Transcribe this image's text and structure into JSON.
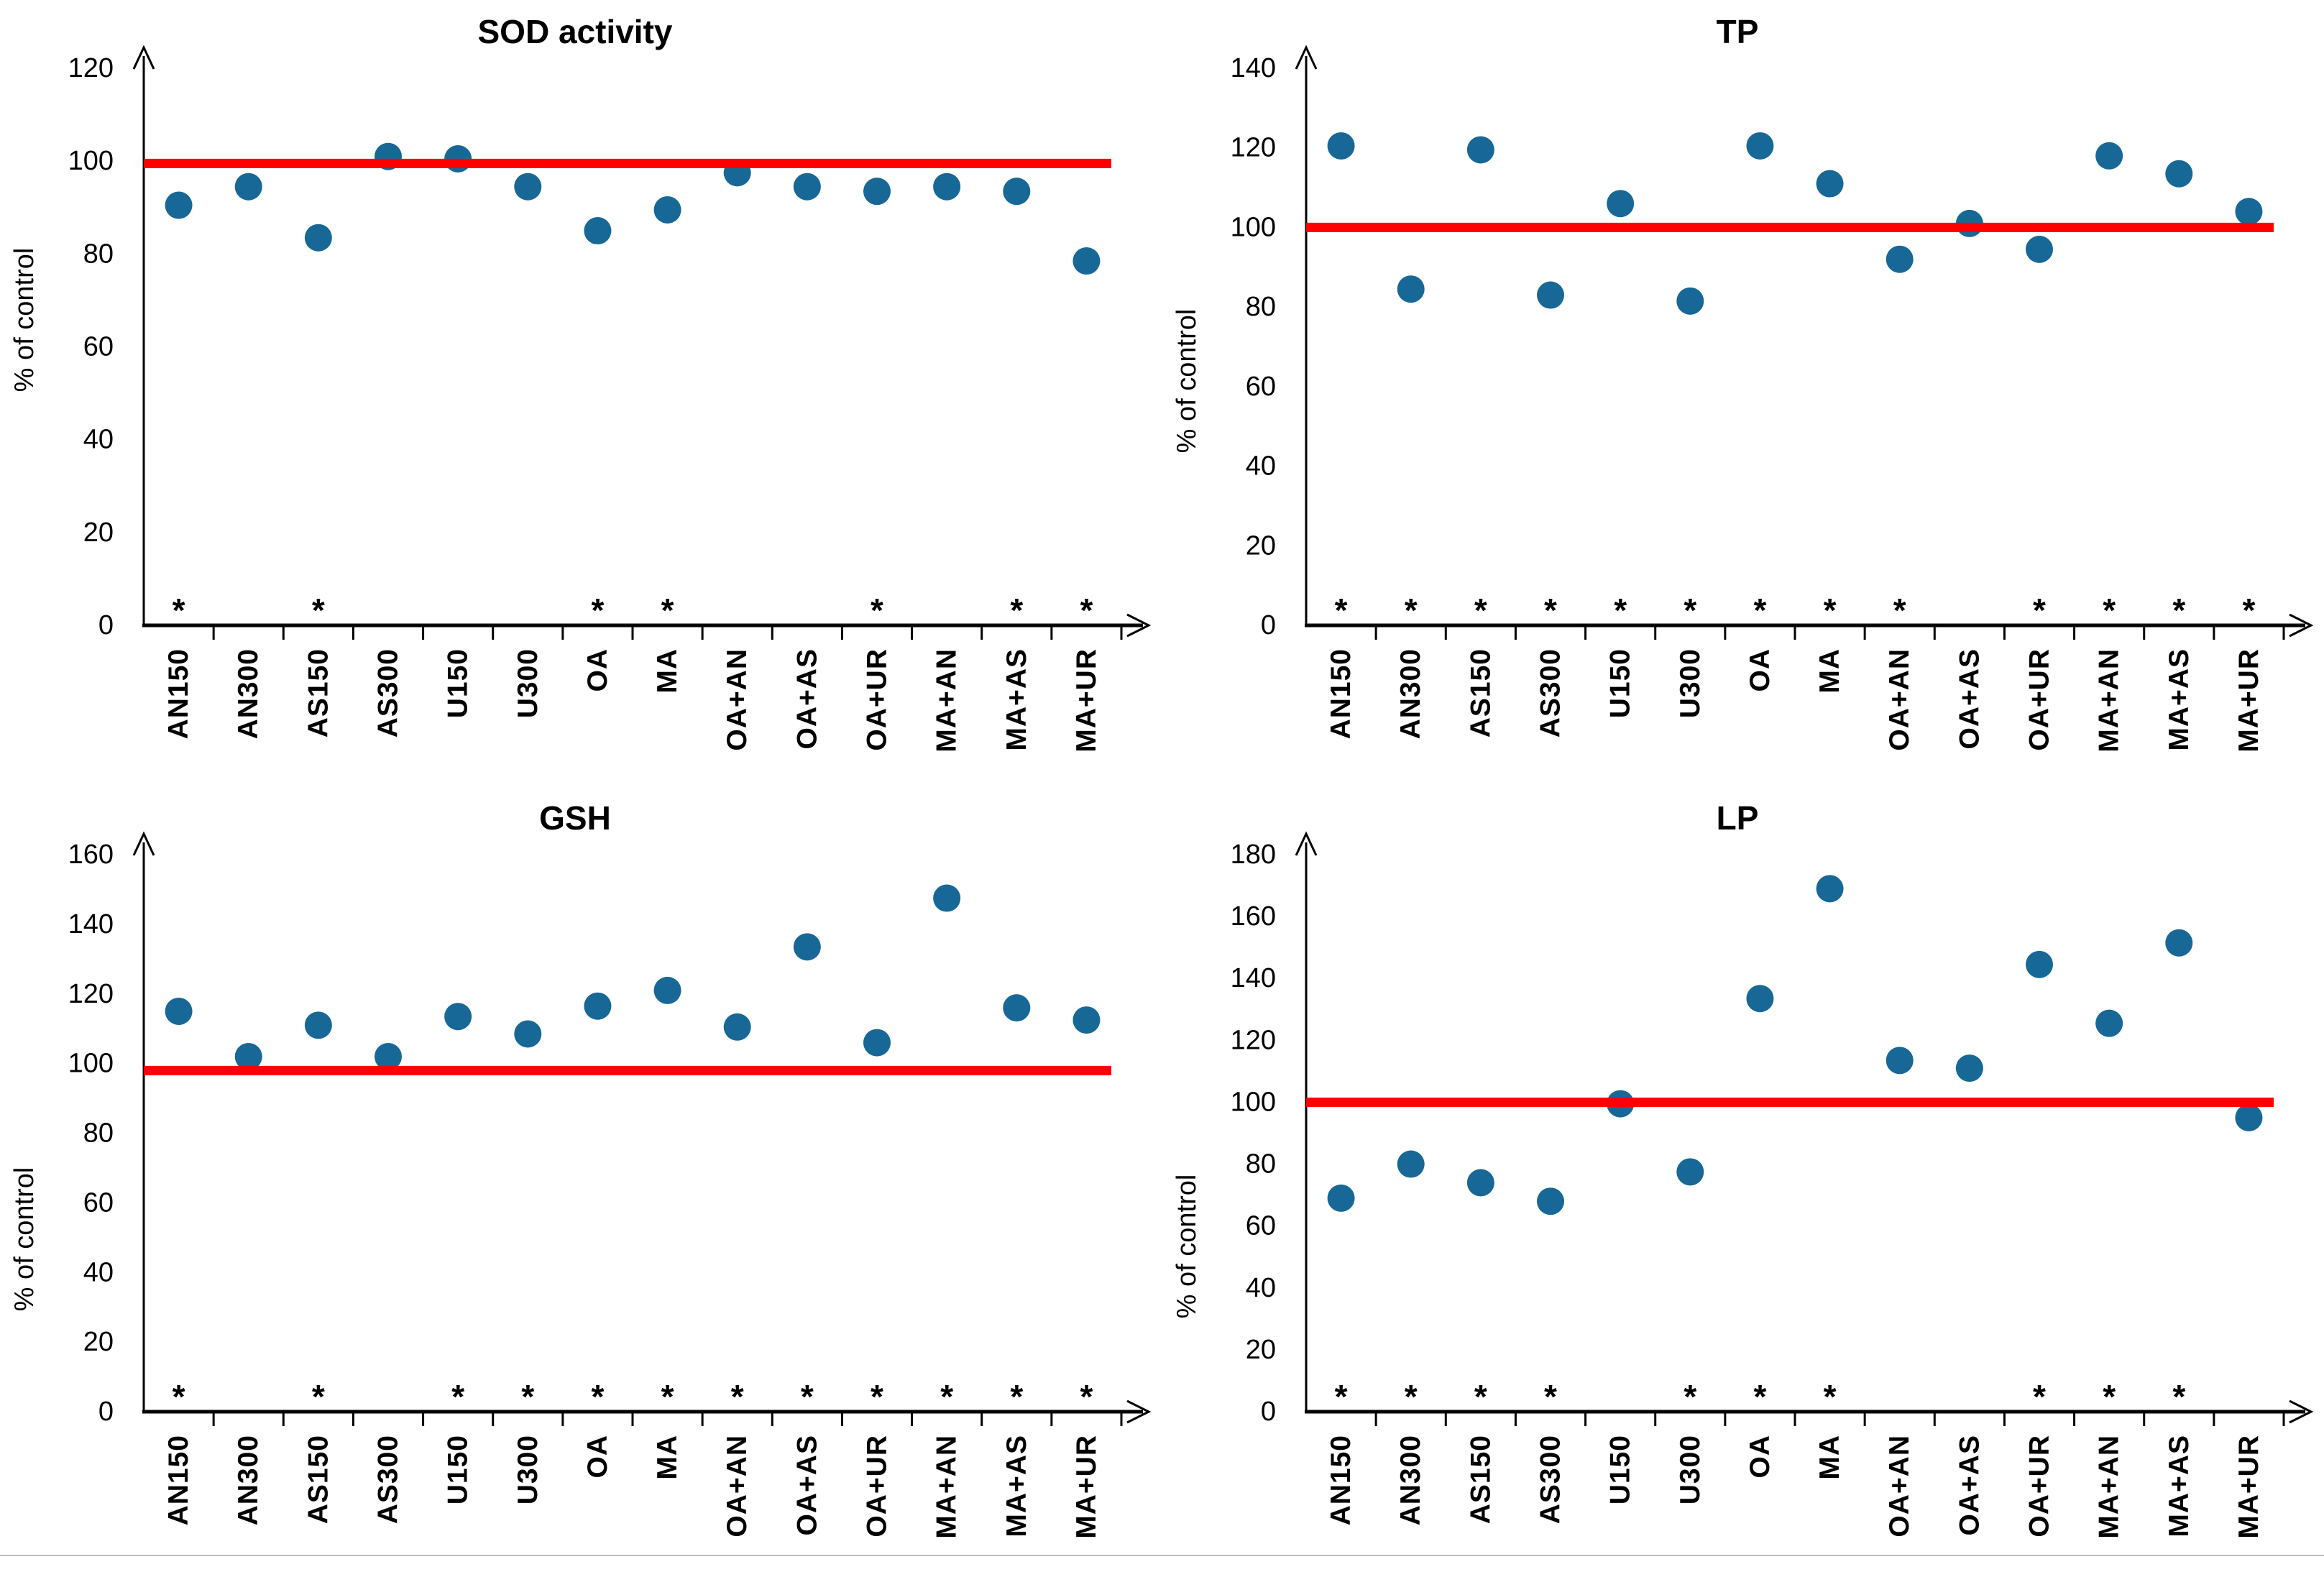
{
  "figure_title": "",
  "significance_marker": "*",
  "style": {
    "background": "#ffffff",
    "dot_color": "#176896",
    "ref_line_color": "#ff0000",
    "asterisk_color": "#c00000",
    "axis_color": "#000000",
    "text_color": "#000000",
    "divider_color": "#bdbdbd"
  },
  "chart_data": [
    {
      "type": "scatter",
      "title": "SOD activity",
      "ylabel": "% of control",
      "xlabel": "",
      "ylim": [
        0,
        120
      ],
      "ytick_step": 20,
      "grid": false,
      "legend": false,
      "ref_line_value": 99.5,
      "categories": [
        "AN150",
        "AN300",
        "AS150",
        "AS300",
        "U150",
        "U300",
        "OA",
        "MA",
        "OA+AN",
        "OA+AS",
        "OA+UR",
        "MA+AN",
        "MA+AS",
        "MA+UR"
      ],
      "values": [
        90.5,
        94.5,
        83.5,
        101,
        100.5,
        94.5,
        85,
        89.5,
        97.5,
        94.5,
        93.5,
        94.5,
        93.5,
        78.5
      ],
      "significant_categories": [
        "AN150",
        "AS150",
        "OA",
        "MA",
        "OA+UR",
        "MA+AS",
        "MA+UR"
      ]
    },
    {
      "type": "scatter",
      "title": "TP",
      "ylabel": "% of control",
      "xlabel": "",
      "ylim": [
        0,
        140
      ],
      "ytick_step": 20,
      "grid": false,
      "legend": false,
      "ref_line_value": 100,
      "categories": [
        "AN150",
        "AN300",
        "AS150",
        "AS300",
        "U150",
        "U300",
        "OA",
        "MA",
        "OA+AN",
        "OA+AS",
        "OA+UR",
        "MA+AN",
        "MA+AS",
        "MA+UR"
      ],
      "values": [
        120.5,
        84.5,
        119.5,
        83,
        106,
        81.5,
        120.5,
        111,
        92,
        101,
        94.5,
        118,
        113.5,
        104
      ],
      "significant_categories": [
        "AN150",
        "AN300",
        "AS150",
        "AS300",
        "U150",
        "U300",
        "OA",
        "MA",
        "OA+AN",
        "OA+UR",
        "MA+AN",
        "MA+AS",
        "MA+UR"
      ]
    },
    {
      "type": "scatter",
      "title": "GSH",
      "ylabel": "% of control",
      "xlabel": "",
      "ylim": [
        0,
        160
      ],
      "ytick_step": 20,
      "grid": false,
      "legend": false,
      "ref_line_value": 98,
      "categories": [
        "AN150",
        "AN300",
        "AS150",
        "AS300",
        "U150",
        "U300",
        "OA",
        "MA",
        "OA+AN",
        "OA+AS",
        "OA+UR",
        "MA+AN",
        "MA+AS",
        "MA+UR"
      ],
      "values": [
        115,
        102,
        111,
        102,
        113.5,
        108.5,
        116.5,
        121,
        110.5,
        133.5,
        106,
        147.5,
        116,
        112.5
      ],
      "significant_categories": [
        "AN150",
        "AS150",
        "U150",
        "U300",
        "OA",
        "MA",
        "OA+AN",
        "OA+AS",
        "OA+UR",
        "MA+AN",
        "MA+AS",
        "MA+UR"
      ]
    },
    {
      "type": "scatter",
      "title": "LP",
      "ylabel": "% of control",
      "xlabel": "",
      "ylim": [
        0,
        180
      ],
      "ytick_step": 20,
      "grid": false,
      "legend": false,
      "ref_line_value": 100,
      "categories": [
        "AN150",
        "AN300",
        "AS150",
        "AS300",
        "U150",
        "U300",
        "OA",
        "MA",
        "OA+AN",
        "OA+AS",
        "OA+UR",
        "MA+AN",
        "MA+AS",
        "MA+UR"
      ],
      "values": [
        69,
        80,
        74,
        68,
        99.5,
        77.5,
        133.5,
        169,
        113.5,
        111,
        144.5,
        125.5,
        151.5,
        95
      ],
      "significant_categories": [
        "AN150",
        "AN300",
        "AS150",
        "AS300",
        "U300",
        "OA",
        "MA",
        "OA+UR",
        "MA+AN",
        "MA+AS"
      ]
    }
  ]
}
